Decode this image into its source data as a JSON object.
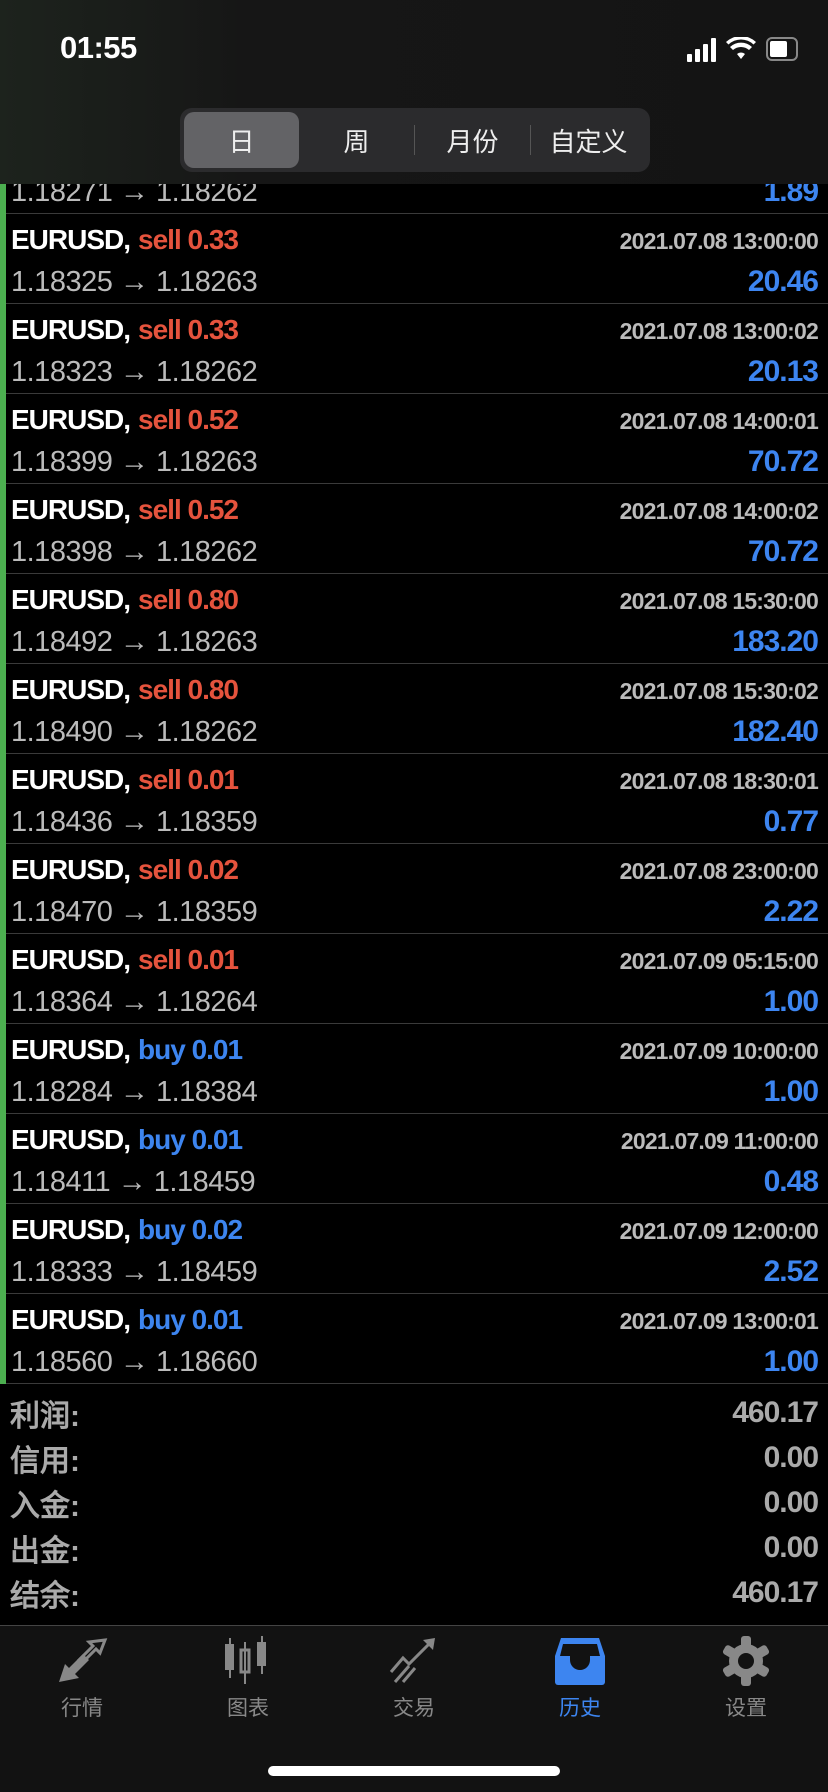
{
  "status_bar": {
    "time": "01:55"
  },
  "segments": [
    {
      "label": "日",
      "active": true
    },
    {
      "label": "周"
    },
    {
      "label": "月份"
    },
    {
      "label": "自定义"
    }
  ],
  "partial_row": {
    "prices": "1.18271 → 1.18262",
    "profit": "1.89"
  },
  "trades": [
    {
      "symbol": "EURUSD,",
      "side": "sell",
      "volume": "0.33",
      "time": "2021.07.08 13:00:00",
      "prices": "1.18325 → 1.18263",
      "profit": "20.46"
    },
    {
      "symbol": "EURUSD,",
      "side": "sell",
      "volume": "0.33",
      "time": "2021.07.08 13:00:02",
      "prices": "1.18323 → 1.18262",
      "profit": "20.13"
    },
    {
      "symbol": "EURUSD,",
      "side": "sell",
      "volume": "0.52",
      "time": "2021.07.08 14:00:01",
      "prices": "1.18399 → 1.18263",
      "profit": "70.72"
    },
    {
      "symbol": "EURUSD,",
      "side": "sell",
      "volume": "0.52",
      "time": "2021.07.08 14:00:02",
      "prices": "1.18398 → 1.18262",
      "profit": "70.72"
    },
    {
      "symbol": "EURUSD,",
      "side": "sell",
      "volume": "0.80",
      "time": "2021.07.08 15:30:00",
      "prices": "1.18492 → 1.18263",
      "profit": "183.20"
    },
    {
      "symbol": "EURUSD,",
      "side": "sell",
      "volume": "0.80",
      "time": "2021.07.08 15:30:02",
      "prices": "1.18490 → 1.18262",
      "profit": "182.40"
    },
    {
      "symbol": "EURUSD,",
      "side": "sell",
      "volume": "0.01",
      "time": "2021.07.08 18:30:01",
      "prices": "1.18436 → 1.18359",
      "profit": "0.77"
    },
    {
      "symbol": "EURUSD,",
      "side": "sell",
      "volume": "0.02",
      "time": "2021.07.08 23:00:00",
      "prices": "1.18470 → 1.18359",
      "profit": "2.22"
    },
    {
      "symbol": "EURUSD,",
      "side": "sell",
      "volume": "0.01",
      "time": "2021.07.09 05:15:00",
      "prices": "1.18364 → 1.18264",
      "profit": "1.00"
    },
    {
      "symbol": "EURUSD,",
      "side": "buy",
      "volume": "0.01",
      "time": "2021.07.09 10:00:00",
      "prices": "1.18284 → 1.18384",
      "profit": "1.00"
    },
    {
      "symbol": "EURUSD,",
      "side": "buy",
      "volume": "0.01",
      "time": "2021.07.09 11:00:00",
      "prices": "1.18411 → 1.18459",
      "profit": "0.48"
    },
    {
      "symbol": "EURUSD,",
      "side": "buy",
      "volume": "0.02",
      "time": "2021.07.09 12:00:00",
      "prices": "1.18333 → 1.18459",
      "profit": "2.52"
    },
    {
      "symbol": "EURUSD,",
      "side": "buy",
      "volume": "0.01",
      "time": "2021.07.09 13:00:01",
      "prices": "1.18560 → 1.18660",
      "profit": "1.00"
    }
  ],
  "summary": [
    {
      "label": "利润:",
      "value": "460.17"
    },
    {
      "label": "信用:",
      "value": "0.00"
    },
    {
      "label": "入金:",
      "value": "0.00"
    },
    {
      "label": "出金:",
      "value": "0.00"
    },
    {
      "label": "结余:",
      "value": "460.17"
    }
  ],
  "tabbar": [
    {
      "label": "行情",
      "icon": "quotes-arrows-icon"
    },
    {
      "label": "图表",
      "icon": "candlestick-chart-icon"
    },
    {
      "label": "交易",
      "icon": "trade-trend-icon"
    },
    {
      "label": "历史",
      "icon": "history-inbox-icon",
      "active": true
    },
    {
      "label": "设置",
      "icon": "settings-gear-icon"
    }
  ],
  "colors": {
    "sell": "#e5533d",
    "buy": "#3d85f0",
    "profit": "#3d85f0",
    "accent": "#3d85f0",
    "row_marker": "#4caf50"
  }
}
